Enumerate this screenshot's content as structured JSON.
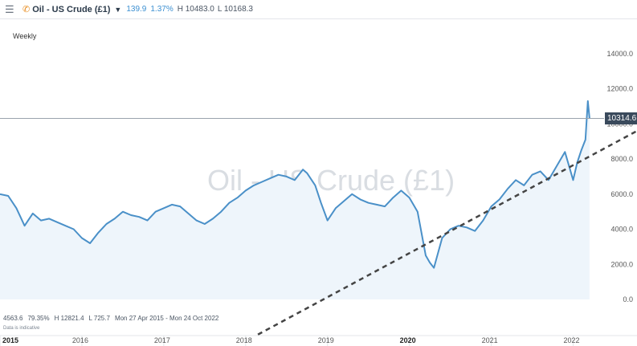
{
  "header": {
    "instrument": "Oil - US Crude (£1)",
    "change_points": "139.9",
    "change_percent": "1.37%",
    "high": "H 10483.0",
    "low": "L 10168.3"
  },
  "icons": {
    "menu": "hamburger-icon",
    "instrument": "phone-icon",
    "dropdown": "caret-down-icon"
  },
  "chart": {
    "interval": "Weekly",
    "watermark": "Oil - US Crude (£1)",
    "current_price_label": "10314.6",
    "stats": {
      "value": "4563.6",
      "percent": "79.35%",
      "high": "H 12821.4",
      "low": "L 725.7",
      "range": "Mon 27 Apr 2015 - Mon 24 Oct 2022"
    },
    "disclaimer": "Data is indicative",
    "colors": {
      "line": "#4a90c8",
      "area": "#eef5fb",
      "trend": "#444444",
      "tag": "#3a4a5c"
    }
  },
  "chart_data": {
    "type": "area",
    "ylim": [
      0,
      15000
    ],
    "yticks": [
      "0.0",
      "2000.0",
      "4000.0",
      "6000.0",
      "8000.0",
      "10000.0",
      "12000.0",
      "14000.0"
    ],
    "ytick_values": [
      0,
      2000,
      4000,
      6000,
      8000,
      10000,
      12000,
      14000
    ],
    "xlim": [
      2015.0,
      2022.78
    ],
    "xticks": [
      "2015",
      "2016",
      "2017",
      "2018",
      "2019",
      "2020",
      "2021",
      "2022"
    ],
    "xtick_values": [
      2015,
      2016,
      2017,
      2018,
      2019,
      2020,
      2021,
      2022
    ],
    "major_years": [
      "2015",
      "2020"
    ],
    "current_price": 10314.6,
    "x": [
      2015.0,
      2015.1,
      2015.2,
      2015.3,
      2015.4,
      2015.5,
      2015.6,
      2015.7,
      2015.8,
      2015.9,
      2016.0,
      2016.1,
      2016.2,
      2016.3,
      2016.4,
      2016.5,
      2016.6,
      2016.7,
      2016.8,
      2016.9,
      2017.0,
      2017.1,
      2017.2,
      2017.3,
      2017.4,
      2017.5,
      2017.6,
      2017.7,
      2017.8,
      2017.9,
      2018.0,
      2018.1,
      2018.2,
      2018.3,
      2018.4,
      2018.5,
      2018.6,
      2018.7,
      2018.75,
      2018.85,
      2018.92,
      2019.0,
      2019.1,
      2019.2,
      2019.3,
      2019.4,
      2019.5,
      2019.6,
      2019.7,
      2019.8,
      2019.9,
      2020.0,
      2020.1,
      2020.2,
      2020.25,
      2020.3,
      2020.4,
      2020.5,
      2020.6,
      2020.7,
      2020.8,
      2020.9,
      2021.0,
      2021.1,
      2021.2,
      2021.3,
      2021.4,
      2021.5,
      2021.6,
      2021.7,
      2021.8,
      2021.9,
      2022.0,
      2022.05,
      2022.1,
      2022.15,
      2022.18,
      2022.2
    ],
    "y": [
      6000,
      5900,
      5200,
      4200,
      4900,
      4500,
      4600,
      4400,
      4200,
      4000,
      3500,
      3200,
      3800,
      4300,
      4600,
      5000,
      4800,
      4700,
      4500,
      5000,
      5200,
      5400,
      5300,
      4900,
      4500,
      4300,
      4600,
      5000,
      5500,
      5800,
      6200,
      6500,
      6700,
      6900,
      7100,
      7000,
      6800,
      7400,
      7200,
      6500,
      5500,
      4500,
      5200,
      5600,
      6000,
      5700,
      5500,
      5400,
      5300,
      5800,
      6200,
      5800,
      5000,
      2500,
      2100,
      1800,
      3500,
      4000,
      4200,
      4100,
      3900,
      4500,
      5300,
      5700,
      6300,
      6800,
      6500,
      7100,
      7300,
      6800,
      7600,
      8400,
      6800,
      7800,
      8500,
      9100,
      11300,
      10314.6
    ],
    "trendline": {
      "x": [
        2018.15,
        2022.78
      ],
      "y": [
        -2000,
        9600
      ]
    }
  }
}
